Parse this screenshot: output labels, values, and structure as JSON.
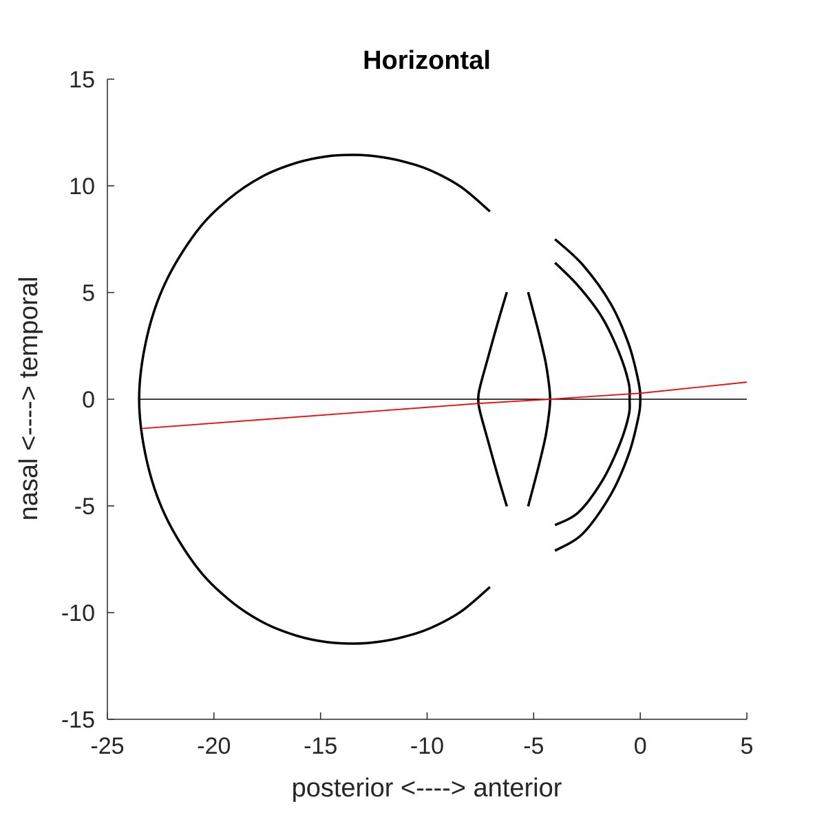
{
  "chart_data": {
    "type": "line",
    "title": "Horizontal",
    "xlabel": "posterior <----> anterior",
    "ylabel": "nasal <----> temporal",
    "xlim": [
      -25,
      5
    ],
    "ylim": [
      -15,
      15
    ],
    "xticks": [
      -25,
      -20,
      -15,
      -10,
      -5,
      0,
      5
    ],
    "yticks": [
      15,
      10,
      5,
      0,
      -5,
      -10,
      -15
    ],
    "xtick_labels": [
      "-25",
      "-20",
      "-15",
      "-10",
      "-5",
      "0",
      "5"
    ],
    "ytick_labels": [
      "15",
      "10",
      "5",
      "0",
      "-5",
      "-10",
      "-15"
    ],
    "grid": false,
    "series": [
      {
        "color": "#000000",
        "x": [
          -23.5,
          5
        ],
        "y": [
          0,
          0
        ]
      },
      {
        "color": "#000000",
        "x": [
          -7.05,
          -8.41,
          -9.88,
          -11.15,
          -12.3,
          -13.43,
          -14.72,
          -16.16,
          -17.73,
          -19.31,
          -20.82,
          -22.28,
          -23.15,
          -23.51,
          -23.15,
          -22.28,
          -20.82,
          -19.31,
          -17.73,
          -16.16,
          -14.72,
          -13.43,
          -12.3,
          -11.15,
          -9.88,
          -8.41,
          -7.05
        ],
        "y": [
          8.8,
          9.95,
          10.74,
          11.15,
          11.37,
          11.45,
          11.38,
          11.07,
          10.44,
          9.38,
          7.85,
          5.46,
          2.89,
          0,
          -2.89,
          -5.46,
          -7.85,
          -9.38,
          -10.44,
          -11.07,
          -11.38,
          -11.45,
          -11.37,
          -11.15,
          -10.74,
          -9.95,
          -8.8
        ]
      },
      {
        "color": "#000000",
        "x": [
          -6.26,
          -6.71,
          -7.19,
          -7.52,
          -7.6,
          -7.52,
          -7.19,
          -6.71,
          -6.26
        ],
        "y": [
          5.02,
          3.5,
          1.78,
          0.57,
          0,
          -0.57,
          -1.78,
          -3.5,
          -5.02
        ]
      },
      {
        "color": "#000000",
        "x": [
          -5.26,
          -4.78,
          -4.45,
          -4.28,
          -4.23,
          -4.28,
          -4.45,
          -4.78,
          -5.26
        ],
        "y": [
          5.02,
          3.19,
          1.78,
          0.67,
          0,
          -0.67,
          -1.78,
          -3.19,
          -5.02
        ]
      },
      {
        "color": "#000000",
        "x": [
          -4.0,
          -2.9,
          -1.8,
          -1.0,
          -0.55,
          -0.5,
          -0.55,
          -1.0,
          -1.8,
          -2.9,
          -4.0
        ],
        "y": [
          6.4,
          5.3,
          3.85,
          2.2,
          0.8,
          0,
          -0.8,
          -2.2,
          -3.85,
          -5.3,
          -5.9
        ]
      },
      {
        "color": "#000000",
        "x": [
          -4.0,
          -2.7,
          -1.4,
          -0.55,
          -0.1,
          0.0,
          -0.1,
          -0.55,
          -1.4,
          -2.7,
          -4.0
        ],
        "y": [
          7.5,
          6.3,
          4.5,
          2.6,
          0.9,
          0,
          -0.9,
          -2.6,
          -4.5,
          -6.3,
          -7.1
        ]
      },
      {
        "color": "#ff0000",
        "x": [
          -23.35,
          -7.6,
          -4.23,
          -0.5,
          0.0,
          5.0
        ],
        "y": [
          -1.37,
          -0.2,
          0.0,
          0.25,
          0.28,
          0.8
        ]
      }
    ]
  }
}
